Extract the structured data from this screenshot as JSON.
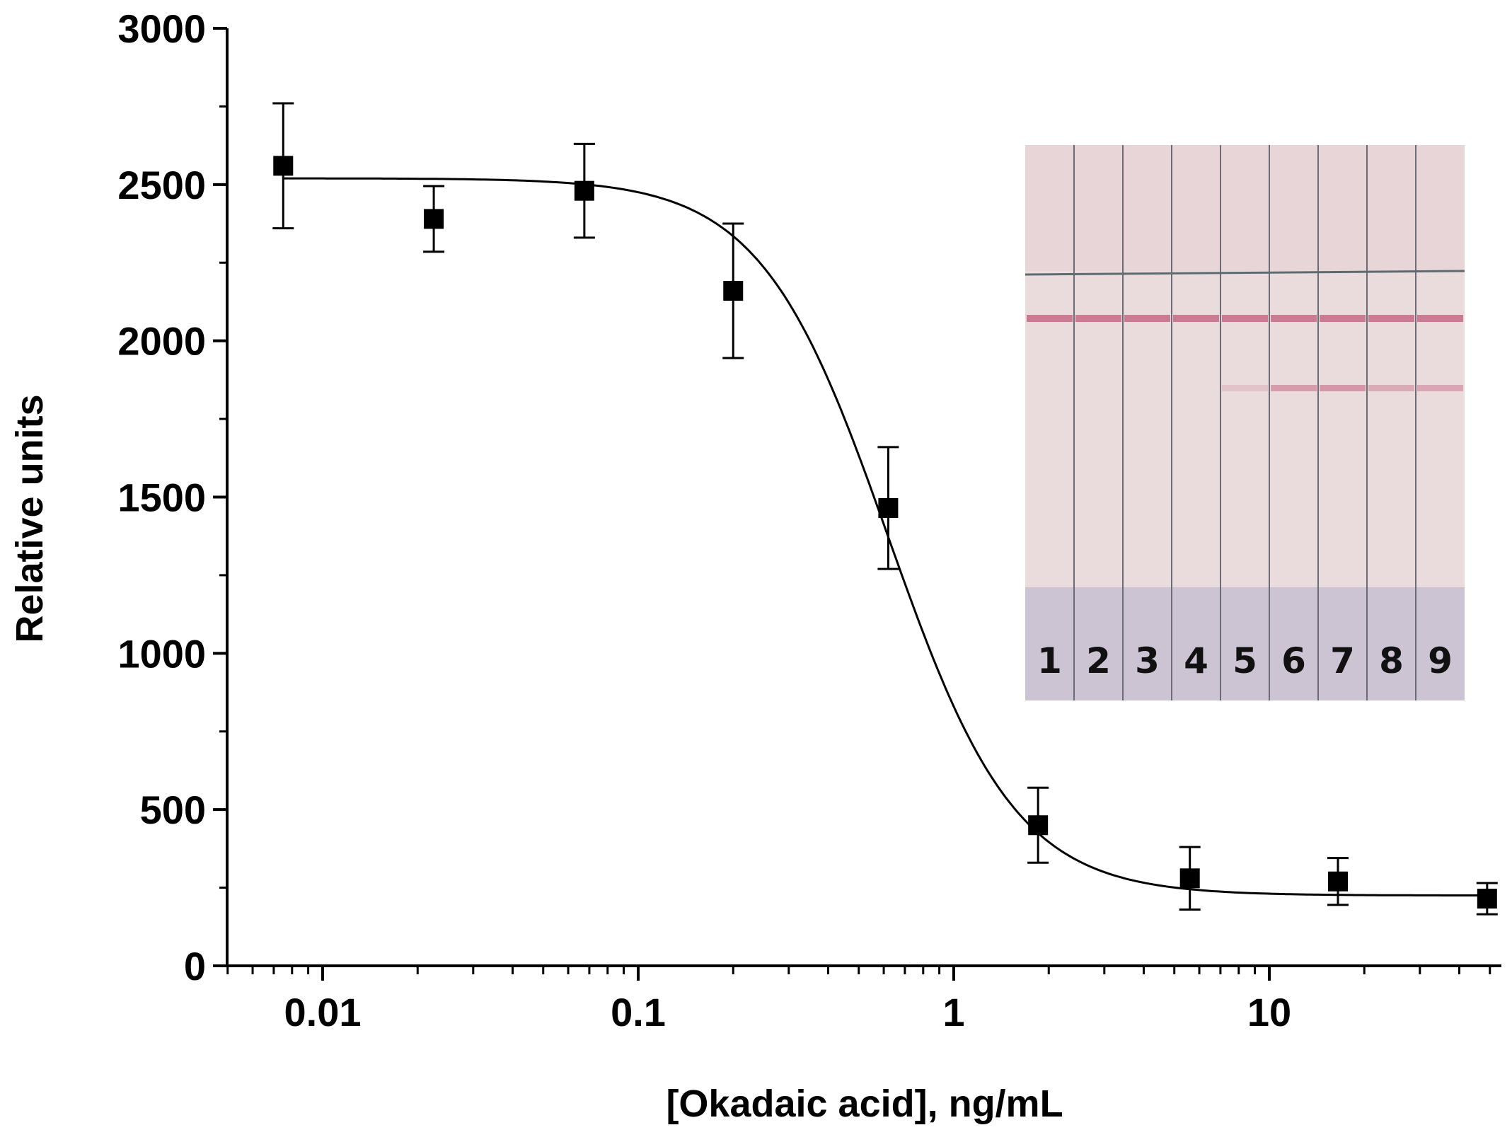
{
  "chart_data": {
    "type": "scatter",
    "title": "",
    "xlabel": "[Okadaic acid], ng/mL",
    "ylabel": "Relative units",
    "xscale": "log",
    "xlim": [
      0.005,
      55
    ],
    "ylim": [
      0,
      3000
    ],
    "grid": false,
    "legend": "none",
    "x_ticks": [
      {
        "value": 0.01,
        "label": "0.01"
      },
      {
        "value": 0.1,
        "label": "0.1"
      },
      {
        "value": 1,
        "label": "1"
      },
      {
        "value": 10,
        "label": "10"
      }
    ],
    "y_ticks": [
      {
        "value": 0,
        "label": "0"
      },
      {
        "value": 500,
        "label": "500"
      },
      {
        "value": 1000,
        "label": "1000"
      },
      {
        "value": 1500,
        "label": "1500"
      },
      {
        "value": 2000,
        "label": "2000"
      },
      {
        "value": 2500,
        "label": "2500"
      },
      {
        "value": 3000,
        "label": "3000"
      }
    ],
    "series": [
      {
        "marker": "square",
        "x": [
          0.0075,
          0.0225,
          0.0675,
          0.2,
          0.62,
          1.85,
          5.6,
          16.5,
          49
        ],
        "y": [
          2560,
          2390,
          2480,
          2160,
          1465,
          450,
          280,
          270,
          215
        ],
        "yerr": [
          200,
          105,
          150,
          215,
          195,
          120,
          100,
          75,
          50
        ]
      }
    ],
    "fit": {
      "model": "four-parameter logistic",
      "top": 2520,
      "bottom": 225,
      "ic50": 0.62,
      "hill": 2.15
    },
    "inset": {
      "type": "test-strip photo",
      "lane_labels": [
        "1",
        "2",
        "3",
        "4",
        "5",
        "6",
        "7",
        "8",
        "9"
      ],
      "control_line_color": "#b43a63",
      "test_line_intensity": [
        0.0,
        0.0,
        0.0,
        0.0,
        0.25,
        0.65,
        0.7,
        0.5,
        0.55
      ]
    },
    "colors": {
      "marker": "#000000",
      "fit_line": "#000000",
      "strip_background": "#eadbdc",
      "sample_pad": "#ccc3d3"
    }
  }
}
